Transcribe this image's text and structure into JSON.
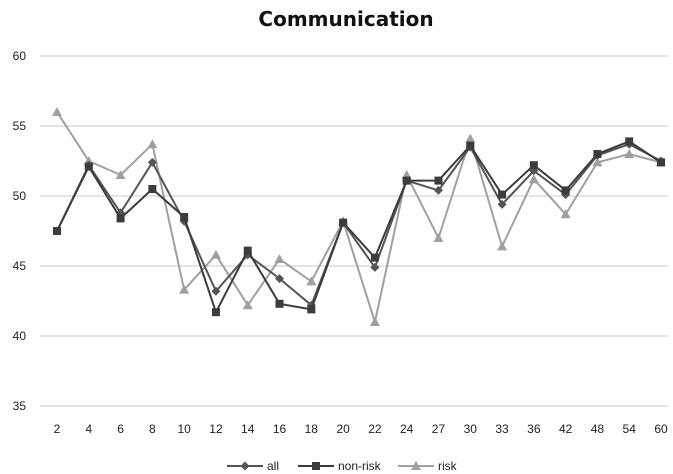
{
  "chart_data": {
    "type": "line",
    "title": "Communication",
    "xlabel": "",
    "ylabel": "",
    "ylim": [
      35,
      60
    ],
    "yticks": [
      35,
      40,
      45,
      50,
      55,
      60
    ],
    "grid": true,
    "legend_position": "bottom",
    "categories": [
      "2",
      "4",
      "6",
      "8",
      "10",
      "12",
      "14",
      "16",
      "18",
      "20",
      "22",
      "24",
      "27",
      "30",
      "33",
      "36",
      "42",
      "48",
      "54",
      "60"
    ],
    "series": [
      {
        "name": "all",
        "marker": "diamond",
        "color": "#555555",
        "values": [
          47.5,
          52.2,
          48.8,
          52.4,
          48.2,
          43.2,
          45.8,
          44.1,
          42.2,
          48.1,
          44.9,
          51.1,
          50.4,
          53.5,
          49.4,
          51.8,
          50.1,
          52.9,
          53.7,
          52.5
        ]
      },
      {
        "name": "non-risk",
        "marker": "square",
        "color": "#3c3c3c",
        "values": [
          47.5,
          52.1,
          48.4,
          50.5,
          48.5,
          41.7,
          46.1,
          42.3,
          41.9,
          48.1,
          45.6,
          51.1,
          51.1,
          53.6,
          50.1,
          52.2,
          50.4,
          53.0,
          53.9,
          52.4
        ]
      },
      {
        "name": "risk",
        "marker": "triangle",
        "color": "#a0a0a0",
        "values": [
          56.0,
          52.5,
          51.5,
          53.7,
          43.3,
          45.8,
          42.2,
          45.5,
          43.9,
          48.2,
          41.0,
          51.5,
          47.0,
          54.1,
          46.4,
          51.2,
          48.7,
          52.4,
          53.0,
          52.4
        ]
      }
    ]
  }
}
